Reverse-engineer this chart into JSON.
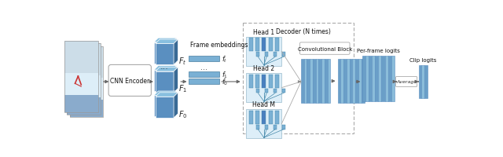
{
  "fig_width": 6.4,
  "fig_height": 2.01,
  "dpi": 100,
  "bg_color": "#ffffff",
  "title": "Decoder (N times)",
  "conv_block_label": "Convolutional Block",
  "per_frame_label": "Per-frame logits",
  "clip_logits_label": "Clip logits",
  "avg_label": "Average",
  "frame_emb_label": "Frame embeddings",
  "cnn_encoder_label": "CNN Encoder",
  "blue_face": "#5a8fc0",
  "blue_top": "#88bfdf",
  "blue_side": "#3a6a95",
  "blue_bar": "#7ab0d4",
  "blue_stripe1": "#6a9fc8",
  "blue_stripe2": "#8bbdda",
  "blue_head_col": "#4a7fbf",
  "blue_head_bg": "#ddeef8",
  "arrow_color": "#666666"
}
